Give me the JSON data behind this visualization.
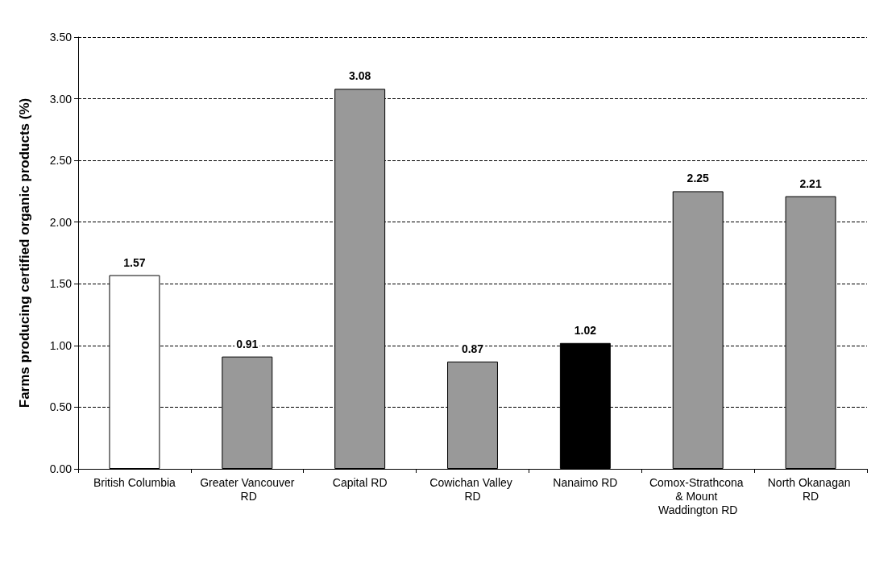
{
  "chart_data": {
    "type": "bar",
    "ylabel": "Farms producing certified organic products (%)",
    "categories": [
      "British Columbia",
      "Greater Vancouver RD",
      "Capital RD",
      "Cowichan Valley RD",
      "Nanaimo RD",
      "Comox-Strathcona & Mount Waddington RD",
      "North Okanagan RD"
    ],
    "values": [
      1.57,
      0.91,
      3.08,
      0.87,
      1.02,
      2.25,
      2.21
    ],
    "colors": [
      "#ffffff",
      "#999999",
      "#999999",
      "#999999",
      "#000000",
      "#999999",
      "#999999"
    ],
    "ylim": [
      0,
      3.5
    ],
    "yticks": [
      {
        "value": 0,
        "label": "0.00"
      },
      {
        "value": 0.5,
        "label": "0.50"
      },
      {
        "value": 1,
        "label": "1.00"
      },
      {
        "value": 1.5,
        "label": "1.50"
      },
      {
        "value": 2,
        "label": "2.00"
      },
      {
        "value": 2.5,
        "label": "2.50"
      },
      {
        "value": 3,
        "label": "3.00"
      },
      {
        "value": 3.5,
        "label": "3.50"
      }
    ],
    "grid": "y",
    "data_labels": true
  }
}
